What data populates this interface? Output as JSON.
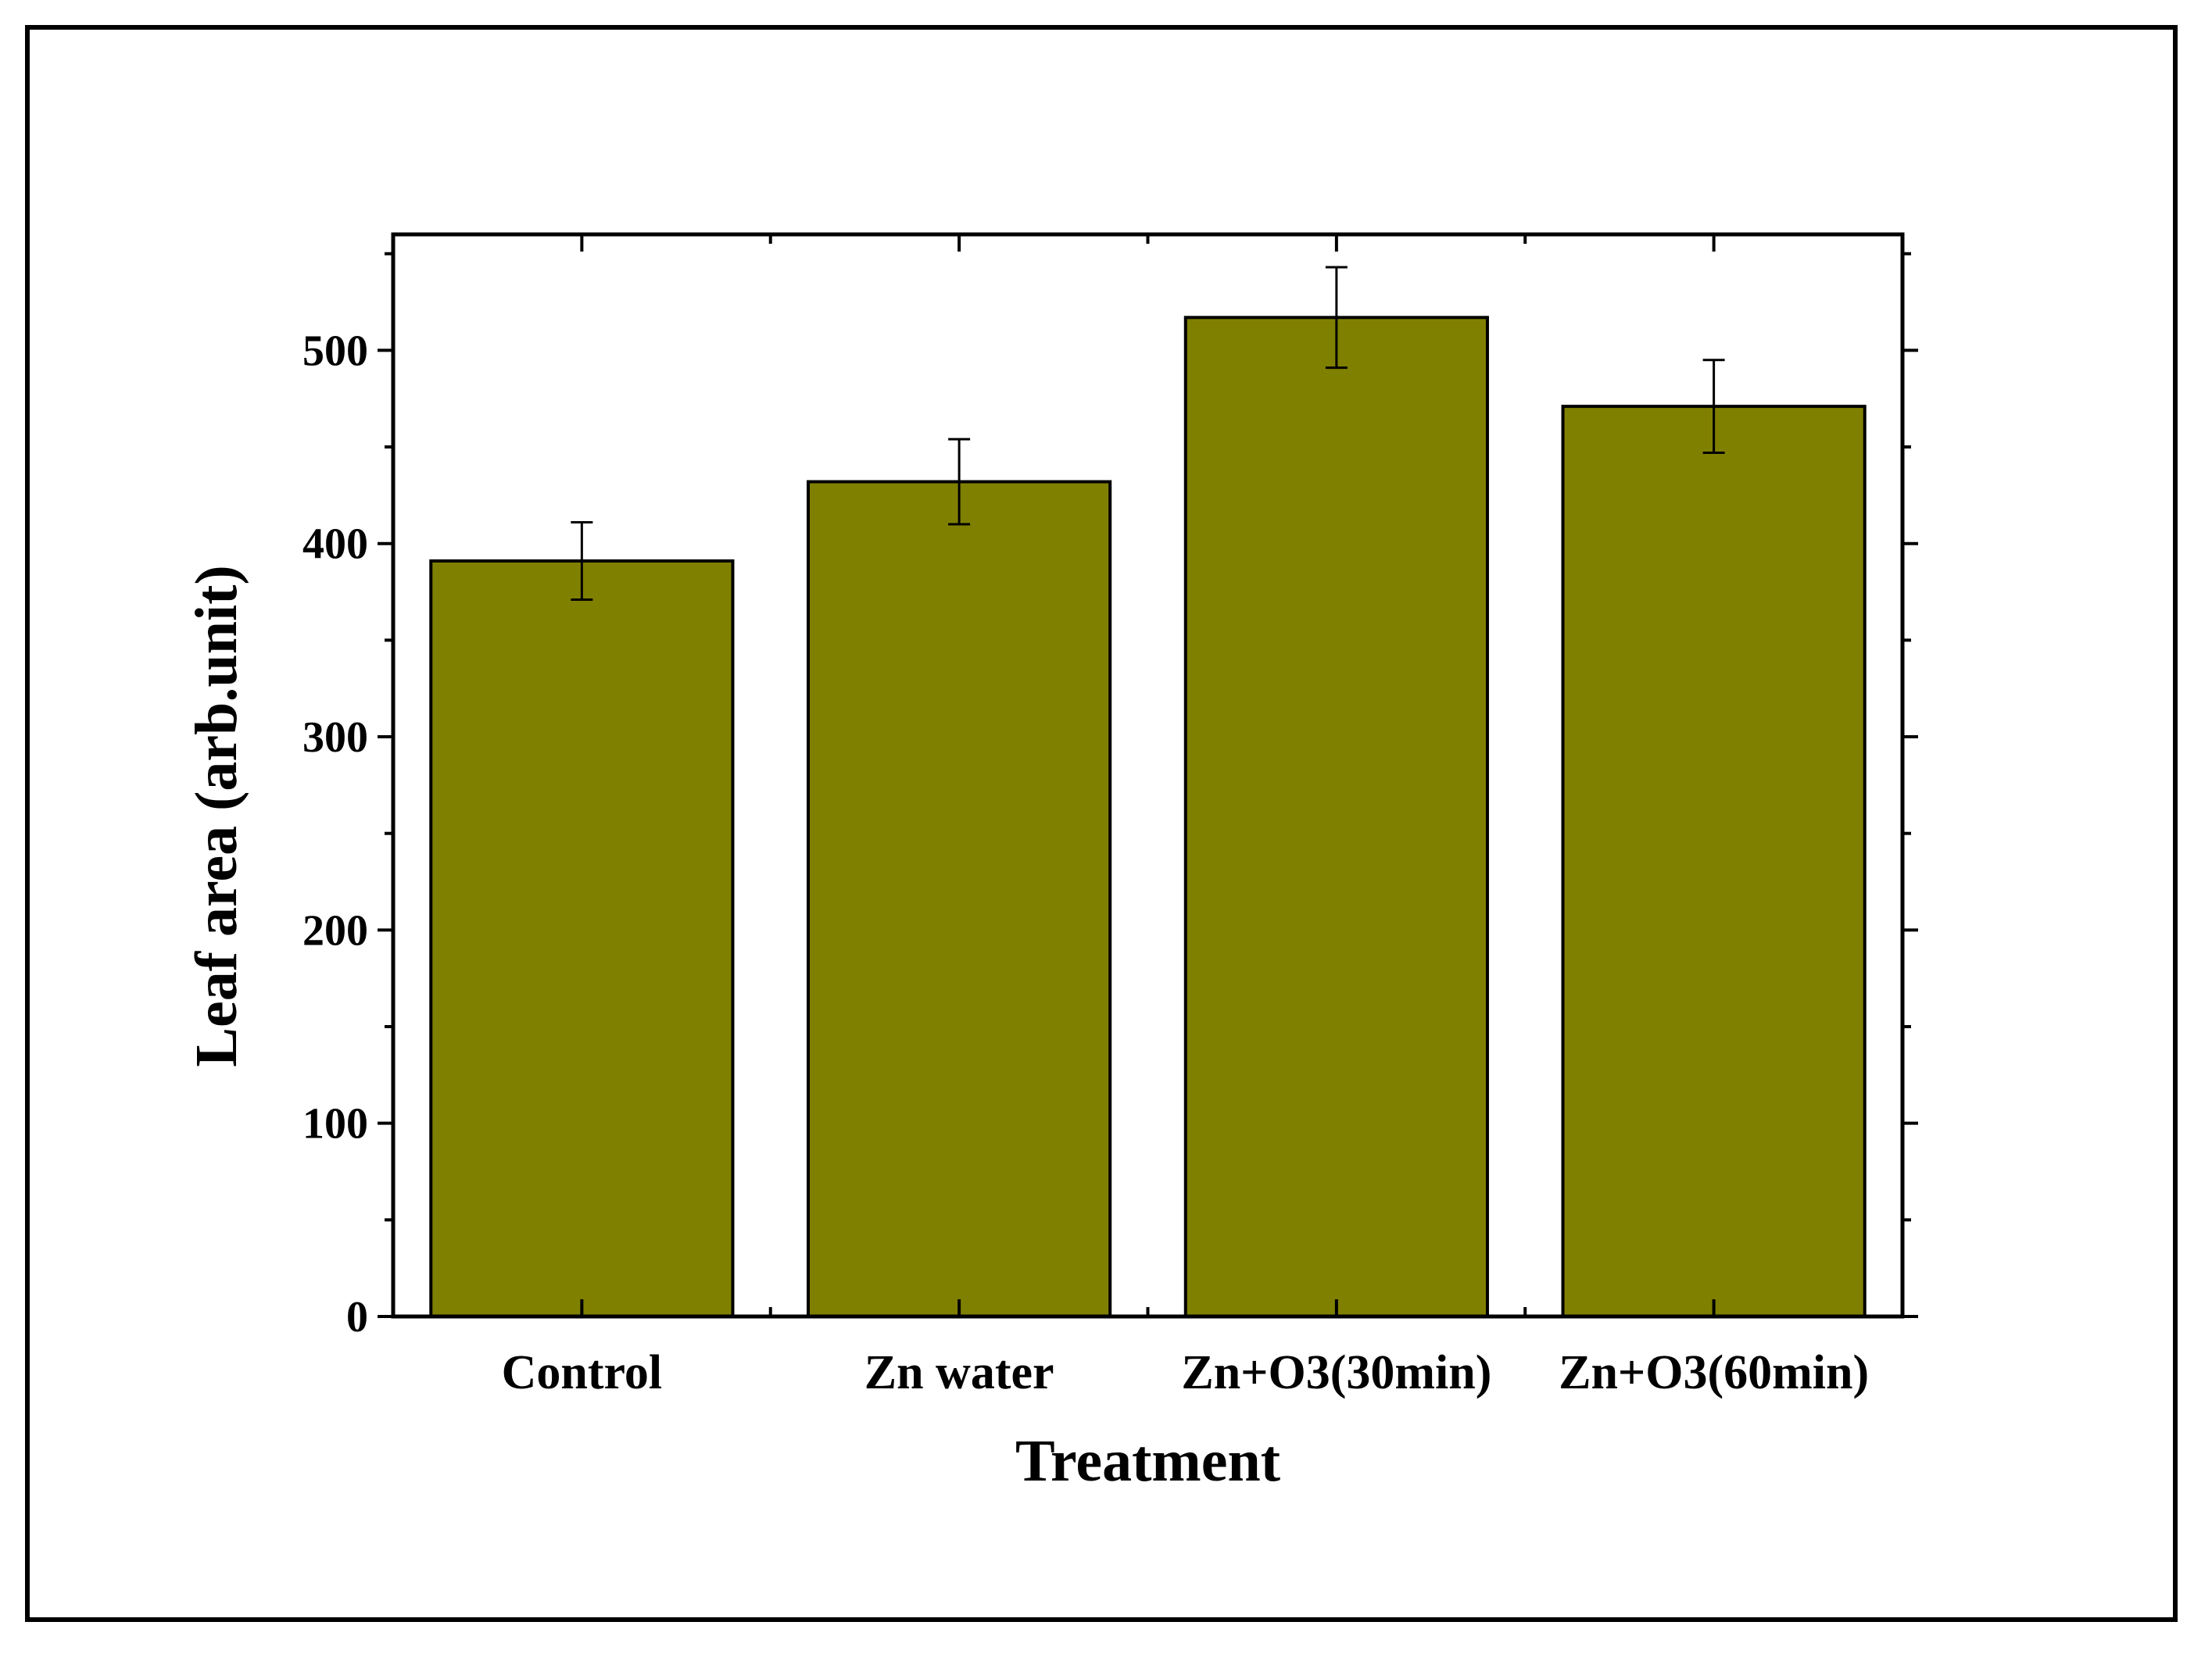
{
  "chart_data": {
    "type": "bar",
    "categories": [
      "Control",
      "Zn water",
      "Zn+O3(30min)",
      "Zn+O3(60min)"
    ],
    "values": [
      391,
      432,
      517,
      471
    ],
    "errors": [
      20,
      22,
      26,
      24
    ],
    "xlabel": "Treatment",
    "ylabel": "Leaf area (arb.unit)",
    "ylim": [
      0,
      560
    ],
    "yticks": [
      0,
      100,
      200,
      300,
      400,
      500
    ],
    "minor_step": 50,
    "bar_color": "#808000",
    "grid": false,
    "legend": "none"
  }
}
